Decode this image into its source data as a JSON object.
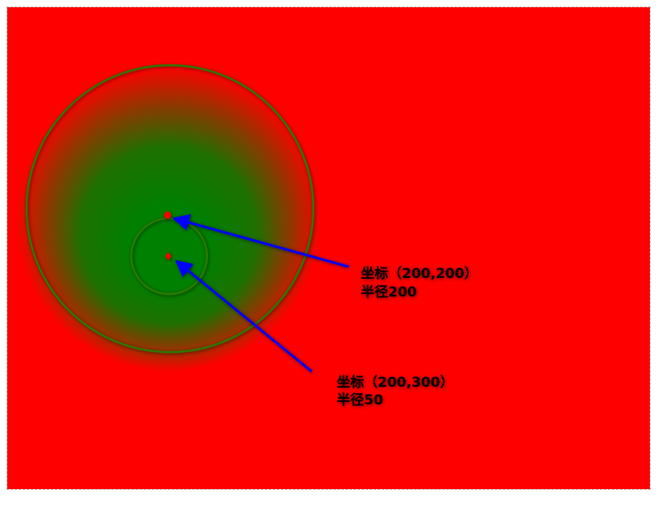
{
  "colors": {
    "background": "#ff0000",
    "gradient_inner": "#008000",
    "gradient_outer": "#ff0000",
    "circle_stroke": "#2a7a00",
    "arrow": "#0000ff",
    "point": "#ff0000"
  },
  "annotations": {
    "outer": {
      "line1": "坐标（200,200）",
      "line2": "半径200"
    },
    "inner": {
      "line1": "坐标（200,300）",
      "line2": "半径50"
    }
  }
}
